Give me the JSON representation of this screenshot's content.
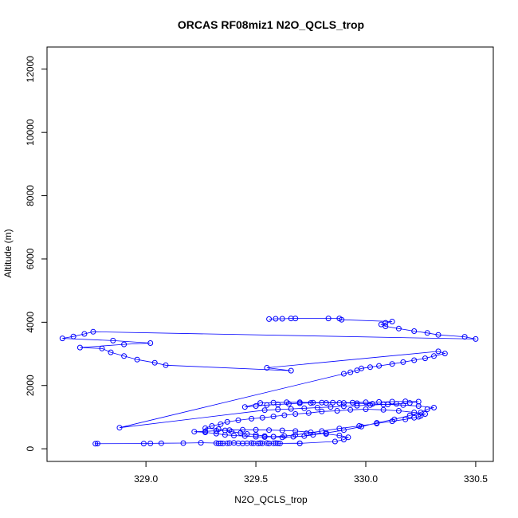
{
  "chart_data": {
    "type": "scatter",
    "title": "ORCAS RF08miz1 N2O_QCLS_trop",
    "xlabel": "N2O_QCLS_trop",
    "ylabel": "Altitude (m)",
    "xlim": [
      328.55,
      330.58
    ],
    "ylim": [
      -400,
      12700
    ],
    "xticks": [
      {
        "value": 329.0,
        "label": "329.0"
      },
      {
        "value": 329.5,
        "label": "329.5"
      },
      {
        "value": 330.0,
        "label": "330.0"
      },
      {
        "value": 330.5,
        "label": "330.5"
      }
    ],
    "yticks": [
      {
        "value": 0,
        "label": "0"
      },
      {
        "value": 2000,
        "label": "2000"
      },
      {
        "value": 4000,
        "label": "4000"
      },
      {
        "value": 6000,
        "label": "6000"
      },
      {
        "value": 8000,
        "label": "8000"
      },
      {
        "value": 10000,
        "label": "10000"
      },
      {
        "value": 12000,
        "label": "12000"
      }
    ],
    "grid": false,
    "legend": "none",
    "series_color": "#0000ff",
    "x": [
      328.78,
      328.77,
      328.99,
      329.02,
      329.07,
      329.17,
      329.25,
      329.32,
      329.33,
      329.34,
      329.35,
      329.37,
      329.38,
      329.4,
      329.42,
      329.44,
      329.46,
      329.48,
      329.49,
      329.51,
      329.52,
      329.53,
      329.55,
      329.56,
      329.58,
      329.59,
      329.6,
      329.61,
      329.7,
      329.7,
      329.86,
      329.9,
      329.92,
      329.88,
      329.82,
      329.75,
      329.68,
      329.62,
      329.56,
      329.5,
      329.44,
      329.38,
      329.32,
      329.27,
      329.22,
      329.27,
      329.32,
      329.36,
      329.4,
      329.45,
      329.5,
      329.54,
      329.58,
      329.63,
      329.68,
      329.73,
      329.8,
      329.88,
      329.97,
      330.05,
      330.12,
      330.18,
      330.22,
      330.24,
      330.25,
      330.27,
      330.22,
      330.15,
      330.08,
      330.0,
      329.93,
      329.87,
      329.8,
      329.74,
      329.68,
      329.63,
      329.58,
      329.53,
      329.48,
      329.42,
      329.37,
      329.34,
      329.3,
      329.27,
      329.33,
      329.36,
      329.39,
      329.43,
      329.46,
      329.5,
      329.54,
      329.58,
      329.62,
      329.67,
      329.72,
      329.76,
      329.82,
      329.9,
      329.98,
      330.05,
      330.13,
      330.2,
      330.25,
      330.28,
      330.31,
      330.24,
      330.17,
      330.1,
      330.03,
      329.96,
      329.9,
      329.85,
      329.8,
      329.75,
      329.7,
      329.65,
      329.6,
      329.55,
      329.5,
      329.45,
      329.52,
      329.58,
      329.64,
      329.7,
      329.76,
      329.82,
      329.88,
      329.94,
      330.0,
      330.06,
      330.12,
      330.18,
      330.24,
      330.2,
      330.14,
      330.08,
      330.02,
      329.96,
      329.9,
      329.84,
      329.78,
      329.72,
      329.66,
      329.6,
      329.54,
      328.88,
      329.9,
      329.93,
      329.96,
      329.98,
      330.02,
      330.06,
      330.12,
      330.17,
      330.22,
      330.27,
      330.31,
      330.36,
      330.33,
      329.55,
      329.66,
      329.09,
      329.04,
      328.96,
      328.9,
      328.84,
      328.8,
      328.7,
      328.9,
      329.02,
      328.85,
      328.62,
      328.67,
      328.72,
      328.76,
      330.5,
      330.45,
      330.33,
      330.28,
      330.22,
      330.15,
      330.09,
      330.07,
      330.09,
      330.12,
      329.89,
      329.88,
      329.83,
      329.68,
      329.66,
      329.62,
      329.59,
      329.56
    ],
    "y": [
      165,
      160,
      165,
      170,
      175,
      180,
      190,
      180,
      170,
      175,
      170,
      175,
      180,
      185,
      175,
      170,
      175,
      180,
      175,
      170,
      180,
      175,
      180,
      170,
      175,
      180,
      175,
      170,
      175,
      170,
      230,
      290,
      360,
      420,
      470,
      520,
      560,
      580,
      590,
      600,
      600,
      590,
      570,
      550,
      540,
      520,
      480,
      440,
      420,
      400,
      380,
      370,
      380,
      400,
      440,
      490,
      560,
      640,
      720,
      800,
      870,
      930,
      980,
      1010,
      1040,
      1100,
      1150,
      1200,
      1230,
      1250,
      1230,
      1200,
      1180,
      1130,
      1100,
      1060,
      1020,
      980,
      950,
      900,
      850,
      780,
      720,
      650,
      620,
      580,
      540,
      500,
      470,
      440,
      400,
      380,
      360,
      380,
      400,
      440,
      500,
      590,
      700,
      820,
      930,
      1050,
      1150,
      1250,
      1300,
      1350,
      1380,
      1400,
      1420,
      1440,
      1450,
      1460,
      1460,
      1450,
      1440,
      1420,
      1400,
      1380,
      1350,
      1320,
      1450,
      1460,
      1470,
      1470,
      1460,
      1450,
      1450,
      1460,
      1470,
      1480,
      1490,
      1500,
      1490,
      1450,
      1420,
      1400,
      1380,
      1360,
      1340,
      1320,
      1300,
      1280,
      1260,
      1240,
      1220,
      665,
      2370,
      2420,
      2480,
      2540,
      2580,
      2620,
      2680,
      2740,
      2800,
      2860,
      2930,
      3010,
      3080,
      2560,
      2470,
      2640,
      2720,
      2820,
      2930,
      3050,
      3170,
      3200,
      3300,
      3340,
      3420,
      3490,
      3550,
      3630,
      3700,
      3470,
      3540,
      3600,
      3660,
      3720,
      3800,
      3870,
      3930,
      3980,
      4020,
      4080,
      4120,
      4120,
      4120,
      4120,
      4110,
      4110,
      4100
    ]
  }
}
